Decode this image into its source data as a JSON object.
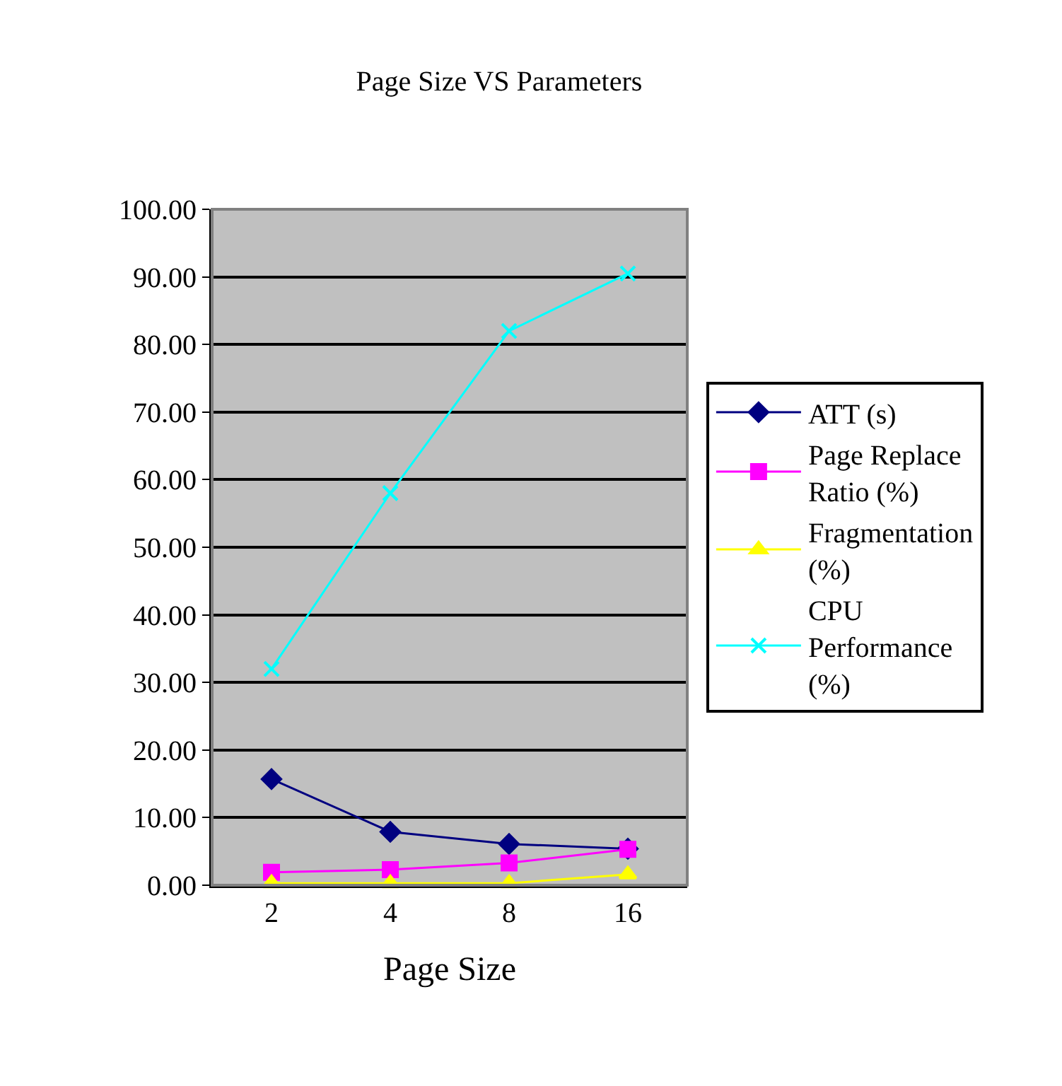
{
  "chart_data": {
    "type": "line",
    "title": "Page Size VS Parameters",
    "xlabel": "Page Size",
    "categories": [
      "2",
      "4",
      "8",
      "16"
    ],
    "series": [
      {
        "name": "ATT (s)",
        "color": "#000080",
        "marker": "diamond",
        "values": [
          15.7,
          7.9,
          6.1,
          5.4
        ]
      },
      {
        "name": "Page Replace Ratio (%)",
        "color": "#ff00ff",
        "marker": "square",
        "values": [
          1.9,
          2.3,
          3.3,
          5.3
        ]
      },
      {
        "name": "Fragmentation (%)",
        "color": "#ffff00",
        "marker": "triangle",
        "values": [
          0.3,
          0.3,
          0.3,
          1.6
        ]
      },
      {
        "name": "CPU Performance (%)",
        "color": "#00ffff",
        "marker": "cross",
        "values": [
          32,
          58,
          82,
          90.5
        ]
      }
    ],
    "ylim": [
      0,
      100
    ],
    "yticks": [
      {
        "value": 0,
        "label": "0.00"
      },
      {
        "value": 10,
        "label": "10.00"
      },
      {
        "value": 20,
        "label": "20.00"
      },
      {
        "value": 30,
        "label": "30.00"
      },
      {
        "value": 40,
        "label": "40.00"
      },
      {
        "value": 50,
        "label": "50.00"
      },
      {
        "value": 60,
        "label": "60.00"
      },
      {
        "value": 70,
        "label": "70.00"
      },
      {
        "value": 80,
        "label": "80.00"
      },
      {
        "value": 90,
        "label": "90.00"
      },
      {
        "value": 100,
        "label": "100.00"
      }
    ],
    "grid": "y",
    "legend": "right"
  }
}
